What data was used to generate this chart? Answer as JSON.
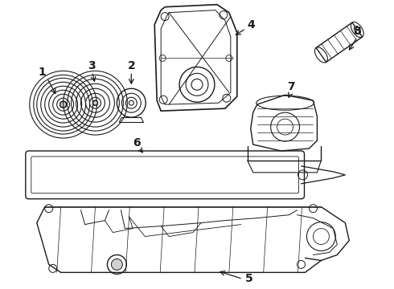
{
  "background_color": "#ffffff",
  "line_color": "#1a1a1a",
  "line_width": 1.0,
  "label_fontsize": 10,
  "figsize": [
    4.9,
    3.6
  ],
  "dpi": 100
}
